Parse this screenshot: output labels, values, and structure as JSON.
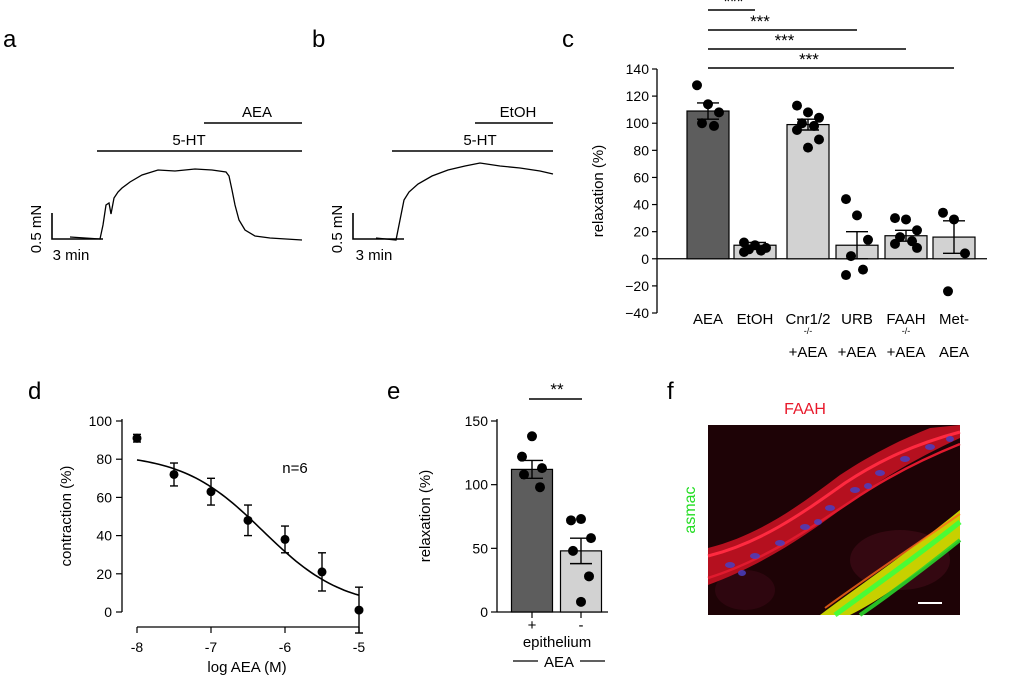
{
  "panels": {
    "a": {
      "letter": "a",
      "bar_top": "AEA",
      "bar_bottom": "5-HT",
      "scale_y": "0.5 mN",
      "scale_x": "3 min"
    },
    "b": {
      "letter": "b",
      "bar_top": "EtOH",
      "bar_bottom": "5-HT",
      "scale_y": "0.5 mN",
      "scale_x": "3 min"
    },
    "c": {
      "letter": "c"
    },
    "d": {
      "letter": "d"
    },
    "e": {
      "letter": "e"
    },
    "f": {
      "letter": "f",
      "red_label": "FAAH",
      "green_label": "asmac",
      "red_color": "#e8182a",
      "green_color": "#22dd22"
    }
  },
  "chart_data": [
    {
      "panel": "c",
      "type": "bar",
      "ylabel": "relaxation (%)",
      "ylim": [
        -40,
        140
      ],
      "yticks": [
        -40,
        -20,
        0,
        20,
        40,
        60,
        80,
        100,
        120,
        140
      ],
      "categories": [
        {
          "line1": "AEA",
          "sup": "",
          "line2": ""
        },
        {
          "line1": "EtOH",
          "sup": "",
          "line2": ""
        },
        {
          "line1": "Cnr1/2",
          "sup": "-/-",
          "line2": "+AEA"
        },
        {
          "line1": "URB",
          "sup": "",
          "line2": "+AEA"
        },
        {
          "line1": "FAAH",
          "sup": "-/-",
          "line2": "+AEA"
        },
        {
          "line1": "Met-",
          "sup": "",
          "line2": "AEA"
        }
      ],
      "values": [
        109,
        10,
        99,
        10,
        17,
        16
      ],
      "errors": [
        6,
        2,
        4,
        10,
        4,
        12
      ],
      "bar_colors": [
        "#5d5d5d",
        "#d2d2d2",
        "#d2d2d2",
        "#d2d2d2",
        "#d2d2d2",
        "#d2d2d2"
      ],
      "points": [
        [
          128,
          114,
          108,
          100,
          98
        ],
        [
          12,
          10,
          8,
          7,
          6,
          5
        ],
        [
          113,
          108,
          104,
          100,
          98,
          95,
          88,
          82
        ],
        [
          44,
          32,
          14,
          2,
          -8,
          -12
        ],
        [
          30,
          29,
          21,
          16,
          13,
          11,
          8
        ],
        [
          34,
          29,
          4,
          -24
        ]
      ],
      "significance": [
        {
          "label": "***",
          "from": 0,
          "to": 1
        },
        {
          "label": "***",
          "from": 0,
          "to": 3
        },
        {
          "label": "***",
          "from": 0,
          "to": 4
        },
        {
          "label": "***",
          "from": 0,
          "to": 5
        }
      ]
    },
    {
      "panel": "d",
      "type": "scatter",
      "xlabel": "log AEA (M)",
      "ylabel": "contraction (%)",
      "xlim": [
        -8,
        -5
      ],
      "ylim": [
        0,
        100
      ],
      "xticks": [
        -8,
        -7,
        -6,
        -5
      ],
      "yticks": [
        0,
        20,
        40,
        60,
        80,
        100
      ],
      "x": [
        -8,
        -7.5,
        -7,
        -6.5,
        -6,
        -5.5,
        -5
      ],
      "y": [
        91,
        72,
        63,
        48,
        38,
        21,
        1
      ],
      "errors": [
        2,
        6,
        7,
        8,
        7,
        10,
        12
      ],
      "fit": {
        "top": 83,
        "bottom": 2,
        "log_ic50": -6.3,
        "hill": 0.8
      },
      "annotation": "n=6"
    },
    {
      "panel": "e",
      "type": "bar",
      "ylabel": "relaxation (%)",
      "ylim": [
        0,
        150
      ],
      "yticks": [
        0,
        50,
        100,
        150
      ],
      "categories": [
        "+",
        "-"
      ],
      "values": [
        112,
        48
      ],
      "errors": [
        7,
        10
      ],
      "bar_colors": [
        "#5d5d5d",
        "#d2d2d2"
      ],
      "points": [
        [
          138,
          122,
          113,
          108,
          98
        ],
        [
          73,
          72,
          58,
          48,
          28,
          8
        ]
      ],
      "significance": [
        {
          "label": "**",
          "from": 0,
          "to": 1
        }
      ],
      "xgroup_label": "epithelium",
      "xgroup_sub": "AEA"
    }
  ]
}
